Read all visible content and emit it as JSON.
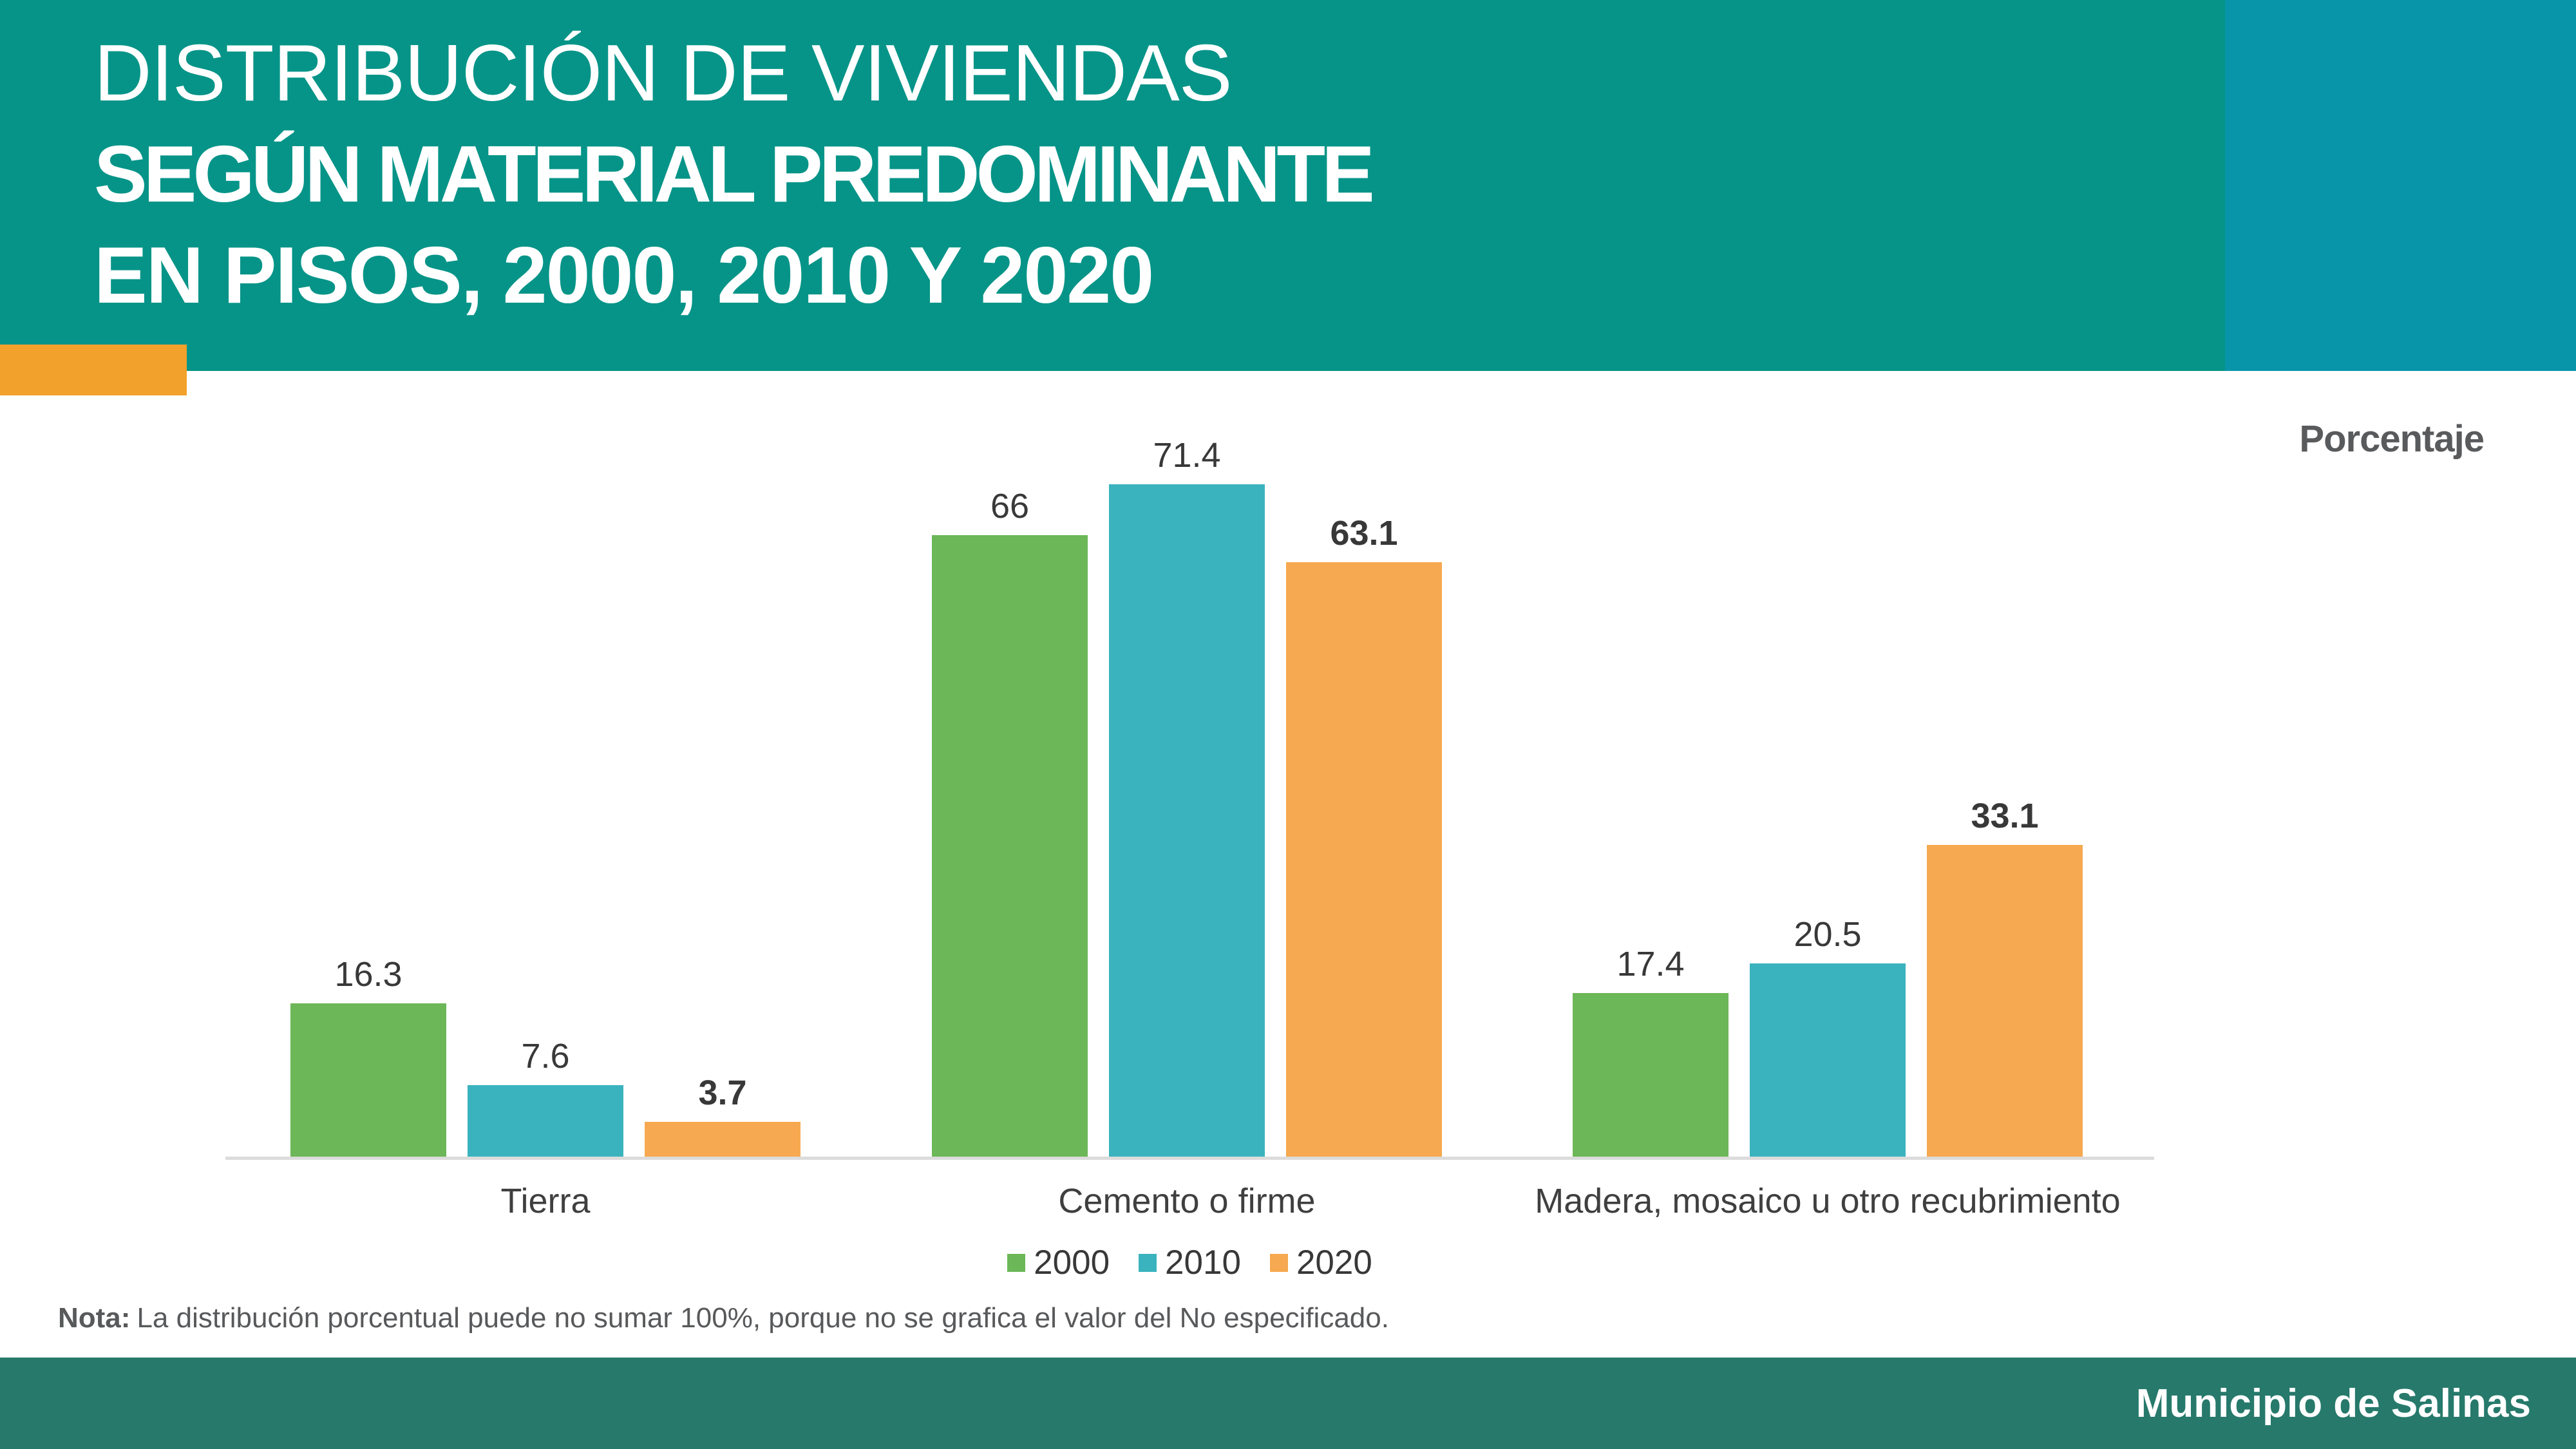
{
  "header": {
    "title_line1": "DISTRIBUCIÓN DE VIVIENDAS",
    "title_line2": "SEGÚN MATERIAL PREDOMINANTE",
    "title_line3": "EN PISOS, 2000, 2010 Y 2020",
    "icon": "home-icon"
  },
  "chart_data": {
    "type": "bar",
    "title": "Distribución de viviendas según material predominante en pisos, 2000, 2010 y 2020",
    "categories": [
      "Tierra",
      "Cemento o firme",
      "Madera, mosaico u otro recubrimiento"
    ],
    "series": [
      {
        "name": "2000",
        "color": "#6CB757",
        "values": [
          16.3,
          66,
          17.4
        ],
        "labels": [
          "16.3",
          "66",
          "17.4"
        ],
        "bold_labels": false
      },
      {
        "name": "2010",
        "color": "#3AB3BE",
        "values": [
          7.6,
          71.4,
          20.5
        ],
        "labels": [
          "7.6",
          "71.4",
          "20.5"
        ],
        "bold_labels": false
      },
      {
        "name": "2020",
        "color": "#F6A950",
        "values": [
          3.7,
          63.1,
          33.1
        ],
        "labels": [
          "3.7",
          "63.1",
          "33.1"
        ],
        "bold_labels": true
      }
    ],
    "ylabel": "Porcentaje",
    "xlabel": "",
    "ylim": [
      0,
      75
    ],
    "grid": false,
    "legend_position": "bottom",
    "value_labels": "above bars"
  },
  "note": {
    "label": "Nota:",
    "text": "La distribución porcentual puede no sumar 100%, porque no se grafica el valor del No especificado."
  },
  "footer": {
    "text": "Municipio de Salinas"
  },
  "colors": {
    "header_teal": "#069488",
    "header_blue": "#0894A9",
    "accent_orange": "#F2A12C",
    "footer_teal": "#26796B",
    "axis_line": "#DCDCDC",
    "value_text": "#383838",
    "gray_text": "#58595B"
  }
}
